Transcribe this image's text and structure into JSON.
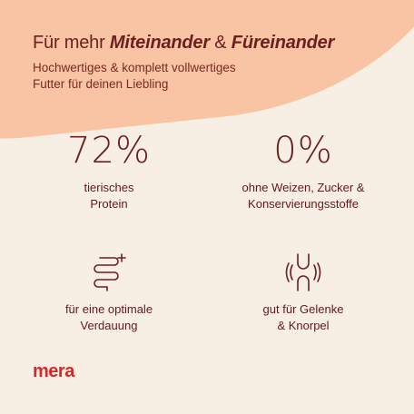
{
  "header": {
    "title_prefix": "Für mehr ",
    "title_em1": "Miteinander",
    "title_mid": " & ",
    "title_em2": "Füreinander",
    "subtitle_line1": "Hochwertiges & komplett vollwertiges",
    "subtitle_line2": "Futter für deinen Liebling"
  },
  "features": [
    {
      "icon": "percent-72",
      "value": "72%",
      "line1": "tierisches",
      "line2": "Protein"
    },
    {
      "icon": "percent-0",
      "value": "0%",
      "line1": "ohne Weizen, Zucker &",
      "line2": "Konservierungsstoffe"
    },
    {
      "icon": "intestine-icon",
      "line1": "für eine optimale",
      "line2": "Verdauung"
    },
    {
      "icon": "joint-icon",
      "line1": "gut für Gelenke",
      "line2": "& Knorpel"
    }
  ],
  "brand": {
    "logo_text": "mera"
  },
  "colors": {
    "background": "#f7efe4",
    "accent_blob": "#f9c4a4",
    "text": "#6b1f1f",
    "logo": "#d22a2a"
  }
}
